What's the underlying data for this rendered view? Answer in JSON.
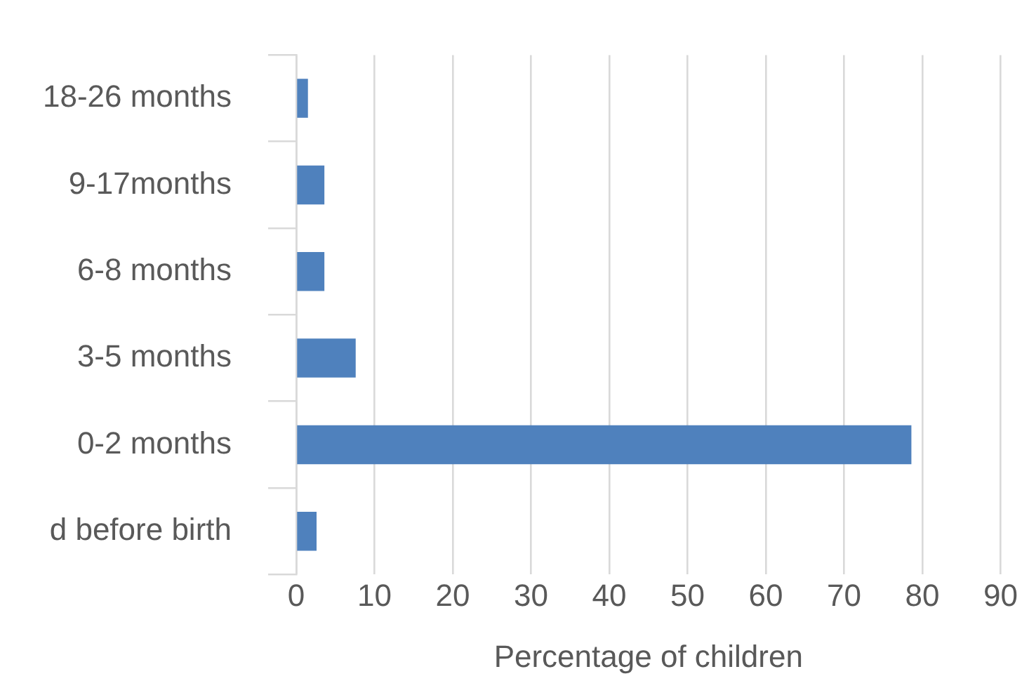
{
  "chart_data": {
    "type": "bar",
    "orientation": "horizontal",
    "xlabel": "Percentage of children",
    "categories": [
      "18-26 months",
      "9-17months",
      "6-8 months",
      "3-5 months",
      "0-2 months",
      "d before birth"
    ],
    "values": [
      1.5,
      3.6,
      3.6,
      7.6,
      78.6,
      2.6
    ],
    "color": "#4f81bd",
    "xlim": [
      0,
      90
    ],
    "xticks": [
      0,
      10,
      20,
      30,
      40,
      50,
      60,
      70,
      80,
      90
    ],
    "grid": "x"
  }
}
